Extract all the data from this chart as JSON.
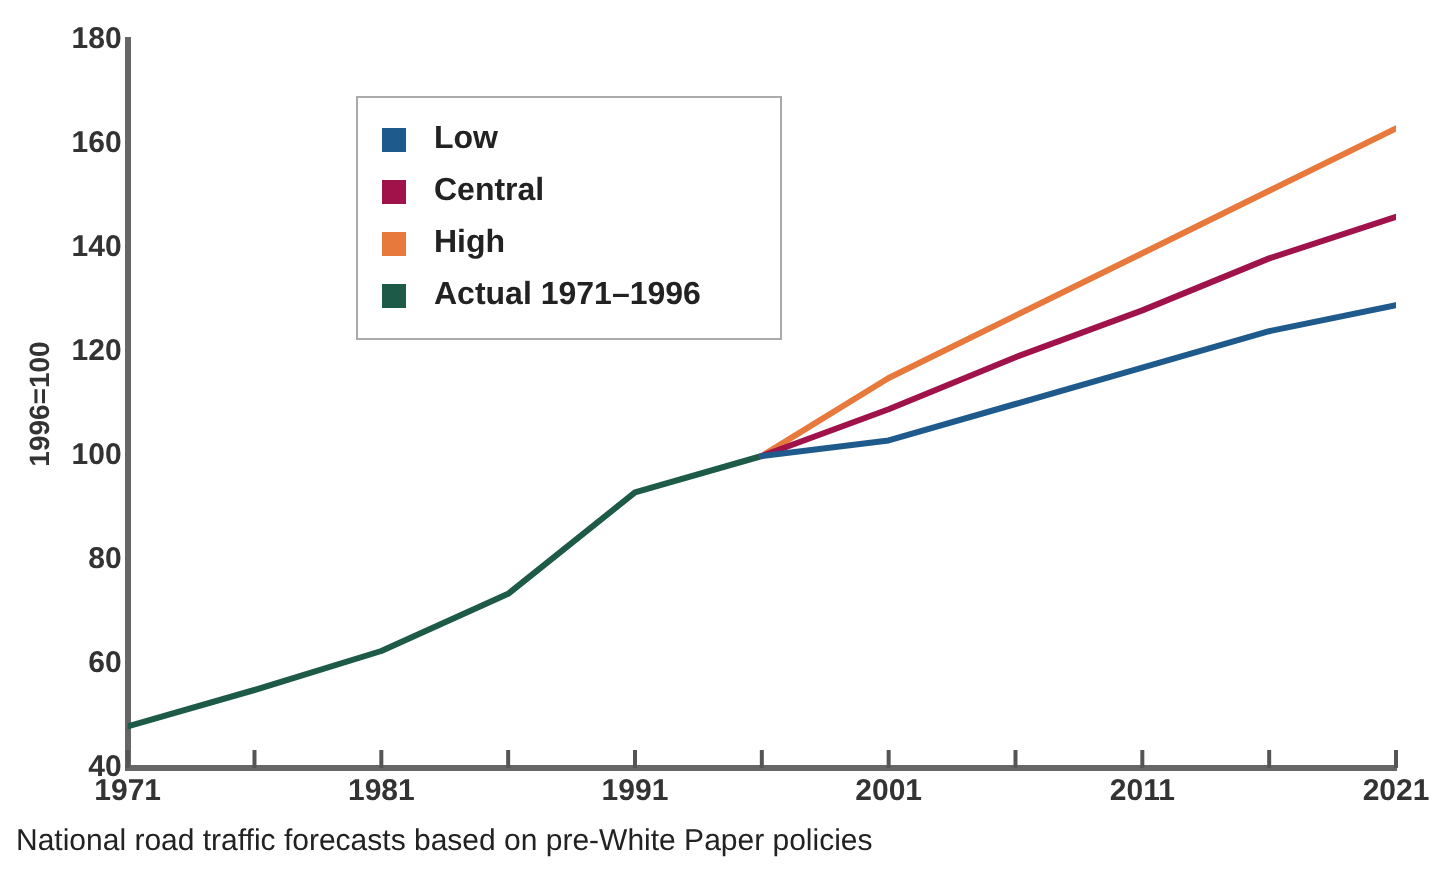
{
  "chart_data": {
    "type": "line",
    "ylabel": "1996=100",
    "annotations": [
      "National road traffic forecasts based on pre-White Paper policies"
    ],
    "series": [
      {
        "name": "Low",
        "color": "#1f5a8c",
        "x": [
          1996,
          2001,
          2006,
          2011,
          2016,
          2021
        ],
        "values": [
          100,
          103,
          110,
          117,
          124,
          129
        ]
      },
      {
        "name": "Central",
        "color": "#a0124a",
        "x": [
          1996,
          2001,
          2006,
          2011,
          2016,
          2021
        ],
        "values": [
          100,
          109,
          119,
          128,
          138,
          146
        ]
      },
      {
        "name": "High",
        "color": "#e8793c",
        "x": [
          1996,
          2001,
          2006,
          2011,
          2016,
          2021
        ],
        "values": [
          100,
          115,
          127,
          139,
          151,
          163
        ]
      },
      {
        "name": "Actual 1971–1996",
        "color": "#1d5a48",
        "x": [
          1971,
          1976,
          1981,
          1986,
          1991,
          1996
        ],
        "values": [
          48,
          55,
          62.5,
          73.5,
          93,
          100
        ]
      }
    ],
    "xlim": [
      1971,
      2021
    ],
    "xticks": [
      1971,
      {
        "value": 1976,
        "label": null
      },
      1981,
      {
        "value": 1986,
        "label": null
      },
      1991,
      {
        "value": 1996,
        "label": null
      },
      2001,
      {
        "value": 2006,
        "label": null
      },
      2011,
      {
        "value": 2016,
        "label": null
      },
      2021
    ],
    "ylim": [
      40,
      180
    ],
    "yticks": [
      40,
      60,
      80,
      100,
      120,
      140,
      160,
      180
    ],
    "grid": false,
    "legend": "top left",
    "marker": "none",
    "line_style": "solid"
  }
}
